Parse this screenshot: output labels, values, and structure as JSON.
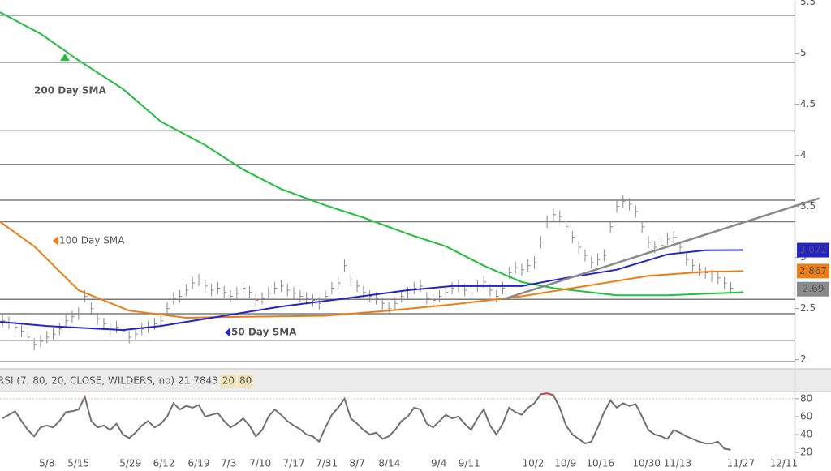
{
  "chart_data": {
    "type": "ohlc",
    "xlim": [
      -7.4,
      118.2
    ],
    "xticks": [
      {
        "value": 0,
        "label": "5/8"
      },
      {
        "value": 5,
        "label": "5/15"
      },
      {
        "value": 13.2,
        "label": "5/29"
      },
      {
        "value": 18.5,
        "label": "6/12"
      },
      {
        "value": 24,
        "label": "6/19"
      },
      {
        "value": 28.7,
        "label": "7/3"
      },
      {
        "value": 33.7,
        "label": "7/10"
      },
      {
        "value": 39,
        "label": "7/17"
      },
      {
        "value": 44.2,
        "label": "7/31"
      },
      {
        "value": 49,
        "label": "8/7"
      },
      {
        "value": 54.1,
        "label": "8/14"
      },
      {
        "value": 61.9,
        "label": "9/4"
      },
      {
        "value": 66.7,
        "label": "9/11"
      },
      {
        "value": 76.8,
        "label": "10/2"
      },
      {
        "value": 81.9,
        "label": "10/9"
      },
      {
        "value": 87.4,
        "label": "10/16"
      },
      {
        "value": 94.7,
        "label": "10/30"
      },
      {
        "value": 99.6,
        "label": "11/13"
      },
      {
        "value": 109.6,
        "label": "11/27"
      },
      {
        "value": 116.4,
        "label": "12/11"
      }
    ],
    "ylim": [
      1.91,
      5.52
    ],
    "yticks": [
      2,
      2.5,
      3,
      3.5,
      4,
      4.5,
      5,
      5.5
    ],
    "x": [
      -7,
      -6,
      -5,
      -4,
      -3,
      -2,
      -1,
      0,
      1,
      2,
      3,
      4,
      5,
      6,
      7,
      8,
      9,
      10,
      11,
      12,
      13,
      14,
      15,
      16,
      17,
      18,
      19,
      20,
      21,
      22,
      23,
      24,
      25,
      26,
      27,
      28,
      29,
      30,
      31,
      32,
      33,
      34,
      35,
      36,
      37,
      38,
      39,
      40,
      41,
      42,
      43,
      44,
      45,
      46,
      47,
      48,
      49,
      50,
      51,
      52,
      53,
      54,
      55,
      56,
      57,
      58,
      59,
      60,
      61,
      62,
      63,
      64,
      65,
      66,
      67,
      68,
      69,
      70,
      71,
      72,
      73,
      74,
      75,
      76,
      77,
      78,
      79,
      80,
      81,
      82,
      83,
      84,
      85,
      86,
      87,
      88,
      89,
      90,
      91,
      92,
      93,
      94,
      95,
      96,
      97,
      98,
      99,
      100,
      101,
      102,
      103,
      104,
      105,
      106,
      107,
      108
    ],
    "high": [
      2.44,
      2.42,
      2.38,
      2.34,
      2.28,
      2.21,
      2.24,
      2.28,
      2.31,
      2.36,
      2.44,
      2.48,
      2.51,
      2.68,
      2.56,
      2.46,
      2.41,
      2.36,
      2.38,
      2.34,
      2.28,
      2.31,
      2.36,
      2.38,
      2.41,
      2.44,
      2.56,
      2.66,
      2.68,
      2.74,
      2.81,
      2.84,
      2.78,
      2.74,
      2.76,
      2.72,
      2.68,
      2.71,
      2.76,
      2.72,
      2.64,
      2.66,
      2.71,
      2.76,
      2.78,
      2.74,
      2.71,
      2.68,
      2.66,
      2.64,
      2.61,
      2.68,
      2.76,
      2.81,
      2.98,
      2.84,
      2.78,
      2.72,
      2.68,
      2.66,
      2.61,
      2.56,
      2.61,
      2.68,
      2.71,
      2.76,
      2.78,
      2.66,
      2.64,
      2.68,
      2.72,
      2.76,
      2.78,
      2.74,
      2.71,
      2.78,
      2.82,
      2.74,
      2.68,
      2.76,
      2.91,
      2.96,
      2.94,
      2.98,
      3.01,
      3.21,
      3.41,
      3.48,
      3.46,
      3.36,
      3.26,
      3.16,
      3.08,
      3.01,
      3.04,
      3.08,
      3.36,
      3.56,
      3.61,
      3.58,
      3.51,
      3.36,
      3.21,
      3.16,
      3.18,
      3.24,
      3.26,
      3.16,
      3.04,
      2.98,
      2.94,
      2.91,
      2.88,
      2.86,
      2.81,
      2.76
    ],
    "low": [
      2.32,
      2.3,
      2.26,
      2.22,
      2.16,
      2.09,
      2.12,
      2.16,
      2.19,
      2.24,
      2.32,
      2.36,
      2.39,
      2.56,
      2.44,
      2.34,
      2.29,
      2.24,
      2.26,
      2.22,
      2.16,
      2.19,
      2.24,
      2.26,
      2.29,
      2.32,
      2.44,
      2.54,
      2.56,
      2.62,
      2.69,
      2.72,
      2.66,
      2.62,
      2.64,
      2.6,
      2.56,
      2.59,
      2.64,
      2.6,
      2.52,
      2.54,
      2.59,
      2.64,
      2.66,
      2.62,
      2.59,
      2.56,
      2.54,
      2.52,
      2.49,
      2.56,
      2.64,
      2.69,
      2.86,
      2.72,
      2.66,
      2.6,
      2.56,
      2.54,
      2.49,
      2.44,
      2.49,
      2.56,
      2.59,
      2.64,
      2.66,
      2.54,
      2.52,
      2.56,
      2.6,
      2.64,
      2.66,
      2.62,
      2.59,
      2.66,
      2.7,
      2.62,
      2.56,
      2.64,
      2.79,
      2.84,
      2.82,
      2.86,
      2.89,
      3.09,
      3.29,
      3.36,
      3.34,
      3.24,
      3.14,
      3.04,
      2.96,
      2.89,
      2.92,
      2.96,
      3.24,
      3.44,
      3.49,
      3.46,
      3.39,
      3.24,
      3.09,
      3.04,
      3.06,
      3.12,
      3.14,
      3.04,
      2.92,
      2.86,
      2.82,
      2.79,
      2.76,
      2.74,
      2.69,
      2.64
    ],
    "close": [
      2.38,
      2.36,
      2.32,
      2.28,
      2.22,
      2.15,
      2.18,
      2.22,
      2.25,
      2.3,
      2.38,
      2.42,
      2.45,
      2.62,
      2.5,
      2.4,
      2.35,
      2.3,
      2.32,
      2.28,
      2.22,
      2.25,
      2.3,
      2.32,
      2.35,
      2.38,
      2.5,
      2.6,
      2.62,
      2.68,
      2.75,
      2.78,
      2.72,
      2.68,
      2.7,
      2.66,
      2.62,
      2.65,
      2.7,
      2.66,
      2.58,
      2.6,
      2.65,
      2.7,
      2.72,
      2.68,
      2.65,
      2.62,
      2.6,
      2.58,
      2.55,
      2.62,
      2.7,
      2.75,
      2.92,
      2.78,
      2.72,
      2.66,
      2.62,
      2.6,
      2.55,
      2.5,
      2.55,
      2.62,
      2.65,
      2.7,
      2.72,
      2.6,
      2.58,
      2.62,
      2.66,
      2.7,
      2.72,
      2.68,
      2.65,
      2.72,
      2.76,
      2.68,
      2.62,
      2.7,
      2.85,
      2.9,
      2.88,
      2.92,
      2.95,
      3.15,
      3.35,
      3.42,
      3.4,
      3.3,
      3.2,
      3.1,
      3.02,
      2.95,
      2.98,
      3.02,
      3.3,
      3.5,
      3.55,
      3.52,
      3.45,
      3.3,
      3.15,
      3.1,
      3.12,
      3.18,
      3.2,
      3.1,
      2.98,
      2.92,
      2.88,
      2.85,
      2.82,
      2.8,
      2.75,
      2.7
    ],
    "bar_color": "#8a8a8a",
    "last_price": 2.69,
    "last_price_color": "#8a8a8a",
    "levels": [
      5.37,
      4.91,
      4.24,
      3.91,
      3.56,
      3.35,
      2.59,
      2.45,
      2.19,
      1.98
    ],
    "level_color": "#7a7a7a",
    "trendline": {
      "x": [
        72,
        122
      ],
      "values": [
        2.59,
        3.58
      ],
      "color": "#8a8a8a"
    },
    "series": [
      {
        "name": "200 Day SMA",
        "color": "#1fc03a",
        "x": [
          -7.4,
          -1,
          5,
          12,
          18,
          25,
          31,
          37,
          44,
          50,
          57,
          63,
          69,
          75,
          80,
          90,
          98,
          110
        ],
        "values": [
          5.4,
          5.19,
          4.93,
          4.65,
          4.33,
          4.1,
          3.86,
          3.67,
          3.51,
          3.39,
          3.23,
          3.11,
          2.92,
          2.76,
          2.7,
          2.63,
          2.63,
          2.66
        ]
      },
      {
        "name": "100  Day SMA",
        "color": "#f07d12",
        "x": [
          -7.4,
          -2,
          5,
          13,
          22,
          31,
          44,
          54,
          64,
          75,
          85,
          95,
          104,
          110
        ],
        "values": [
          3.35,
          3.11,
          2.68,
          2.48,
          2.41,
          2.42,
          2.43,
          2.48,
          2.54,
          2.62,
          2.72,
          2.82,
          2.86,
          2.867
        ],
        "last_value": 2.867
      },
      {
        "name": "50 Day SMA",
        "color": "#2424c8",
        "x": [
          -7.4,
          0,
          12,
          18,
          28,
          37,
          46,
          57,
          64,
          75,
          82,
          90,
          98,
          104,
          110
        ],
        "values": [
          2.37,
          2.33,
          2.29,
          2.33,
          2.43,
          2.52,
          2.59,
          2.68,
          2.72,
          2.72,
          2.8,
          2.88,
          3.03,
          3.07,
          3.072
        ],
        "last_value": 3.072
      }
    ],
    "rsi": {
      "title": "RSI (7, 80, 20, CLOSE, WILDERS, no)",
      "current": 21.7843,
      "levels": [
        20,
        80
      ],
      "ylim": [
        11,
        88
      ],
      "yticks": [
        20,
        40,
        60,
        80
      ],
      "color": "#707070",
      "overbought_color": "#e04040",
      "level_color": "#e0c090",
      "values": [
        58,
        62,
        66,
        55,
        45,
        38,
        48,
        50,
        48,
        55,
        65,
        66,
        68,
        82,
        55,
        48,
        50,
        45,
        52,
        40,
        36,
        42,
        50,
        55,
        48,
        52,
        60,
        75,
        68,
        72,
        70,
        73,
        60,
        62,
        64,
        55,
        48,
        52,
        58,
        50,
        38,
        45,
        60,
        68,
        62,
        55,
        50,
        46,
        40,
        38,
        32,
        48,
        62,
        70,
        80,
        58,
        52,
        45,
        40,
        42,
        35,
        38,
        45,
        55,
        60,
        70,
        68,
        52,
        48,
        55,
        62,
        58,
        60,
        52,
        45,
        58,
        68,
        50,
        40,
        52,
        70,
        65,
        62,
        70,
        75,
        85,
        86,
        84,
        70,
        50,
        40,
        35,
        30,
        32,
        48,
        65,
        78,
        70,
        75,
        72,
        74,
        60,
        45,
        40,
        38,
        35,
        45,
        42,
        38,
        35,
        32,
        30,
        30,
        32,
        24,
        23
      ]
    }
  }
}
